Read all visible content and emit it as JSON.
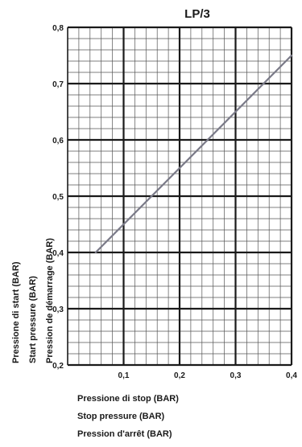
{
  "chart_data": {
    "type": "line",
    "title": "LP/3",
    "xlabel": [
      "Pressione di stop (BAR)",
      "Stop pressure (BAR)",
      "Pression d'arrêt (BAR)"
    ],
    "ylabel": [
      "Pressione di start (BAR)",
      "Start pressure (BAR)",
      "Pression de démarrage (BAR)"
    ],
    "xlim": [
      0,
      0.4
    ],
    "ylim": [
      0.2,
      0.8
    ],
    "xticks": [
      0.1,
      0.2,
      0.3,
      0.4
    ],
    "xtick_labels": [
      "0,1",
      "0,2",
      "0,3",
      "0,4"
    ],
    "yticks": [
      0.2,
      0.3,
      0.4,
      0.5,
      0.6,
      0.7,
      0.8
    ],
    "ytick_labels": [
      "0,2",
      "0,3",
      "0,4",
      "0,5",
      "0,6",
      "0,7",
      "0,8"
    ],
    "grid": true,
    "series": [
      {
        "x": [
          0.05,
          0.4
        ],
        "y": [
          0.4,
          0.75
        ],
        "color": "#7a7a88"
      }
    ]
  }
}
